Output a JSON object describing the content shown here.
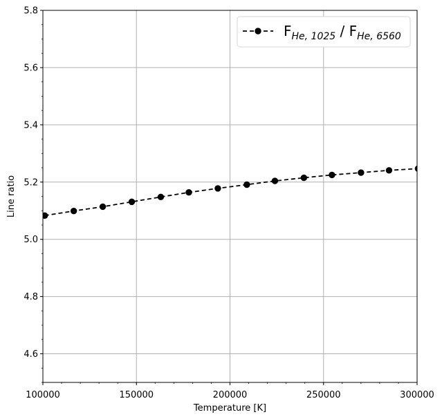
{
  "chart_data": {
    "type": "line",
    "xlabel": "Temperature [K]",
    "ylabel": "Line ratio",
    "xlim": [
      100000,
      300000
    ],
    "ylim": [
      4.5,
      5.8
    ],
    "x_ticks": [
      100000,
      150000,
      200000,
      250000,
      300000
    ],
    "y_ticks": [
      4.6,
      4.8,
      5.0,
      5.2,
      5.4,
      5.6,
      5.8
    ],
    "x_tick_labels": [
      "100000",
      "150000",
      "200000",
      "250000",
      "300000"
    ],
    "y_tick_labels": [
      "4.6",
      "4.8",
      "5.0",
      "5.2",
      "5.4",
      "5.6",
      "5.8"
    ],
    "grid": true,
    "legend": {
      "placement": "top-right",
      "main_1": "F",
      "sub_1": "He, 1025",
      "separator": " / ",
      "main_2": "F",
      "sub_2": "He, 6560"
    },
    "series": [
      {
        "color": "#000000",
        "line_style": "dashed",
        "marker": "circle",
        "x": [
          101000,
          116500,
          132000,
          147500,
          163000,
          178000,
          193500,
          209000,
          224000,
          239500,
          254500,
          270000,
          285000,
          300500
        ],
        "values": [
          5.083,
          5.099,
          5.114,
          5.131,
          5.148,
          5.164,
          5.178,
          5.191,
          5.204,
          5.215,
          5.225,
          5.233,
          5.241,
          5.247
        ]
      }
    ]
  }
}
